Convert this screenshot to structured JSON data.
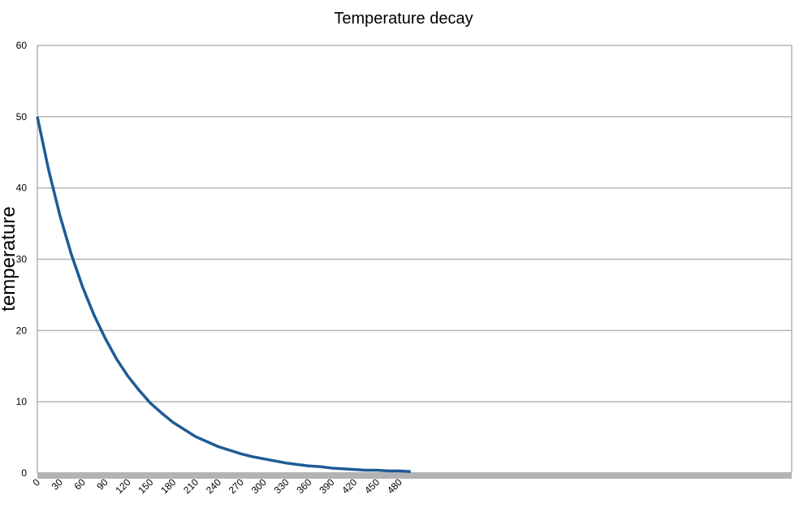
{
  "chart_data": {
    "type": "line",
    "title": "Temperature decay",
    "xlabel": "",
    "ylabel": "temperature",
    "xlim": [
      0,
      1000
    ],
    "ylim": [
      0,
      60
    ],
    "grid": true,
    "legend": "none",
    "colors": {
      "series": "#1f5b95",
      "grid": "#b3b3b3",
      "axis": "#b3b3b3",
      "baseline": "#b3b3b3"
    },
    "x_ticks": [
      "0",
      "30",
      "60",
      "90",
      "120",
      "150",
      "180",
      "210",
      "240",
      "270",
      "300",
      "330",
      "360",
      "390",
      "420",
      "450",
      "480"
    ],
    "y_ticks": [
      "0",
      "10",
      "20",
      "30",
      "40",
      "50",
      "60"
    ],
    "series": [
      {
        "name": "",
        "x": [
          0,
          15,
          30,
          45,
          60,
          75,
          90,
          105,
          120,
          135,
          150,
          165,
          180,
          195,
          210,
          225,
          240,
          255,
          270,
          285,
          300,
          315,
          330,
          345,
          360,
          375,
          390,
          405,
          420,
          435,
          450,
          465,
          480,
          495
        ],
        "y": [
          50,
          42.5,
          36.1,
          30.7,
          26.1,
          22.2,
          18.9,
          16.0,
          13.6,
          11.6,
          9.8,
          8.4,
          7.1,
          6.1,
          5.1,
          4.4,
          3.7,
          3.2,
          2.7,
          2.3,
          2.0,
          1.7,
          1.4,
          1.2,
          1.0,
          0.9,
          0.7,
          0.6,
          0.5,
          0.4,
          0.4,
          0.3,
          0.3,
          0.2
        ]
      }
    ]
  }
}
